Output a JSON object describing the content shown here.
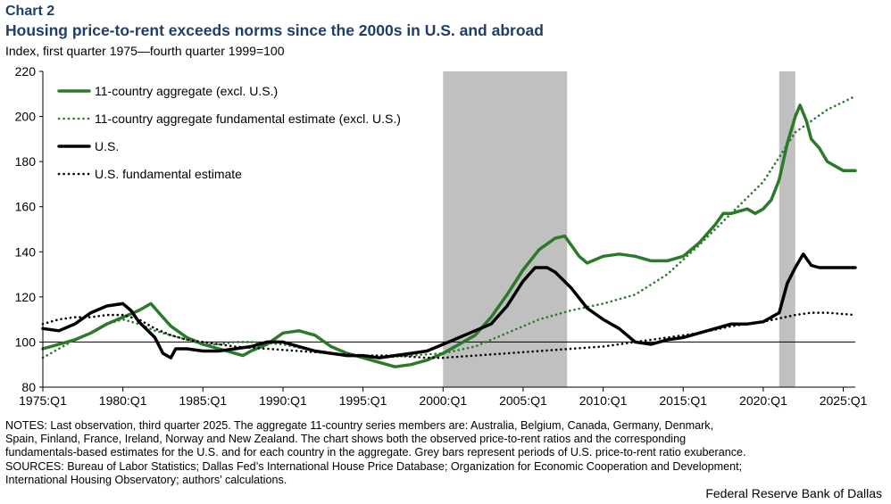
{
  "header": {
    "label": "Chart 2",
    "title": "Housing price-to-rent exceeds norms since the 2000s in U.S. and abroad",
    "subtitle": "Index, first quarter 1975—fourth quarter 1999=100"
  },
  "notes": {
    "lines": [
      "NOTES: Last observation, third quarter 2025. The aggregate 11-country series members are: Australia, Belgium, Canada, Germany, Denmark,",
      "Spain, Finland, France, Ireland, Norway and New Zealand. The chart shows both the observed price-to-rent ratios and the corresponding",
      "fundamentals-based estimates for the U.S. and for each country in the aggregate. Grey bars represent periods of U.S. price-to-rent ratio exuberance.",
      "SOURCES: Bureau of Labor Statistics; Dallas Fed’s International House Price Database; Organization for Economic Cooperation and Development;",
      "International Housing Observatory; authors’ calculations."
    ]
  },
  "footer": {
    "source": "Federal Reserve Bank of Dallas"
  },
  "colors": {
    "green": "#2a7a2a",
    "black": "#000000",
    "shade": "#c0c0c0",
    "title": "#1f3f6a"
  },
  "chart_data": {
    "type": "line",
    "title": "Housing price-to-rent exceeds norms since the 2000s in U.S. and abroad",
    "ylabel": "Index, first quarter 1975—fourth quarter 1999=100",
    "xlabel": "",
    "xlim": [
      1975.0,
      2025.75
    ],
    "ylim": [
      80,
      220
    ],
    "yticks": [
      80,
      100,
      120,
      140,
      160,
      180,
      200,
      220
    ],
    "xticks": [
      {
        "x": 1975,
        "label": "1975:Q1"
      },
      {
        "x": 1980,
        "label": "1980:Q1"
      },
      {
        "x": 1985,
        "label": "1985:Q1"
      },
      {
        "x": 1990,
        "label": "1990:Q1"
      },
      {
        "x": 1995,
        "label": "1995:Q1"
      },
      {
        "x": 2000,
        "label": "2000:Q1"
      },
      {
        "x": 2005,
        "label": "2005:Q1"
      },
      {
        "x": 2010,
        "label": "2010:Q1"
      },
      {
        "x": 2015,
        "label": "2015:Q1"
      },
      {
        "x": 2020,
        "label": "2020:Q1"
      },
      {
        "x": 2025,
        "label": "2025:Q1"
      }
    ],
    "reference_line": 100,
    "shaded_periods": [
      [
        2000.0,
        2007.75
      ],
      [
        2021.0,
        2022.0
      ]
    ],
    "legend_position": "top-left",
    "series": [
      {
        "name": "11-country aggregate (excl. U.S.)",
        "style": "solid",
        "color": "#2a7a2a",
        "points": [
          [
            1975,
            97
          ],
          [
            1976,
            99
          ],
          [
            1977,
            101
          ],
          [
            1978,
            104
          ],
          [
            1979,
            108
          ],
          [
            1980,
            111
          ],
          [
            1981,
            114
          ],
          [
            1981.75,
            117
          ],
          [
            1982.25,
            113
          ],
          [
            1983,
            107
          ],
          [
            1984,
            102
          ],
          [
            1985,
            99
          ],
          [
            1986,
            97
          ],
          [
            1987,
            95
          ],
          [
            1987.5,
            94
          ],
          [
            1988,
            96
          ],
          [
            1989,
            99
          ],
          [
            1990,
            104
          ],
          [
            1991,
            105
          ],
          [
            1992,
            103
          ],
          [
            1993,
            98
          ],
          [
            1994,
            95
          ],
          [
            1995,
            93
          ],
          [
            1996,
            91
          ],
          [
            1997,
            89
          ],
          [
            1998,
            90
          ],
          [
            1999,
            92
          ],
          [
            2000,
            95
          ],
          [
            2001,
            99
          ],
          [
            2002,
            103
          ],
          [
            2003,
            111
          ],
          [
            2004,
            121
          ],
          [
            2005,
            132
          ],
          [
            2006,
            141
          ],
          [
            2007,
            146
          ],
          [
            2007.6,
            147
          ],
          [
            2008.5,
            138
          ],
          [
            2009,
            135
          ],
          [
            2010,
            138
          ],
          [
            2011,
            139
          ],
          [
            2012,
            138
          ],
          [
            2013,
            136
          ],
          [
            2014,
            136
          ],
          [
            2015,
            138
          ],
          [
            2016,
            144
          ],
          [
            2017,
            152
          ],
          [
            2017.5,
            157
          ],
          [
            2018,
            157
          ],
          [
            2019,
            159
          ],
          [
            2019.5,
            157
          ],
          [
            2020,
            159
          ],
          [
            2020.5,
            163
          ],
          [
            2021,
            172
          ],
          [
            2021.5,
            188
          ],
          [
            2022,
            200
          ],
          [
            2022.3,
            205
          ],
          [
            2022.7,
            198
          ],
          [
            2023,
            190
          ],
          [
            2023.5,
            186
          ],
          [
            2024,
            180
          ],
          [
            2025,
            176
          ],
          [
            2025.75,
            176
          ]
        ]
      },
      {
        "name": "11-country aggregate fundamental estimate (excl. U.S.)",
        "style": "dotted",
        "color": "#2a7a2a",
        "points": [
          [
            1975,
            93
          ],
          [
            1976,
            97
          ],
          [
            1977,
            101
          ],
          [
            1978,
            104
          ],
          [
            1979,
            108
          ],
          [
            1980,
            110
          ],
          [
            1981,
            108
          ],
          [
            1982,
            105
          ],
          [
            1983,
            103
          ],
          [
            1984,
            101
          ],
          [
            1985,
            99
          ],
          [
            1986,
            99
          ],
          [
            1987,
            100
          ],
          [
            1988,
            100
          ],
          [
            1990,
            99
          ],
          [
            1992,
            96
          ],
          [
            1994,
            94
          ],
          [
            1996,
            93
          ],
          [
            1998,
            94
          ],
          [
            2000,
            95
          ],
          [
            2002,
            98
          ],
          [
            2004,
            104
          ],
          [
            2006,
            110
          ],
          [
            2008,
            114
          ],
          [
            2010,
            117
          ],
          [
            2012,
            121
          ],
          [
            2014,
            130
          ],
          [
            2016,
            143
          ],
          [
            2018,
            157
          ],
          [
            2020,
            171
          ],
          [
            2022,
            193
          ],
          [
            2024,
            203
          ],
          [
            2025.75,
            209
          ]
        ]
      },
      {
        "name": "U.S.",
        "style": "solid",
        "color": "#000000",
        "points": [
          [
            1975,
            106
          ],
          [
            1976,
            105
          ],
          [
            1977,
            108
          ],
          [
            1978,
            113
          ],
          [
            1979,
            116
          ],
          [
            1980,
            117
          ],
          [
            1980.5,
            114
          ],
          [
            1981,
            109
          ],
          [
            1982,
            102
          ],
          [
            1982.5,
            95
          ],
          [
            1983,
            93
          ],
          [
            1983.3,
            97
          ],
          [
            1984,
            97
          ],
          [
            1985,
            96
          ],
          [
            1986,
            96
          ],
          [
            1987,
            97
          ],
          [
            1988,
            98
          ],
          [
            1989,
            100
          ],
          [
            1990,
            100
          ],
          [
            1991,
            98
          ],
          [
            1992,
            96
          ],
          [
            1993,
            95
          ],
          [
            1994,
            94
          ],
          [
            1995,
            94
          ],
          [
            1996,
            93
          ],
          [
            1997,
            94
          ],
          [
            1998,
            95
          ],
          [
            1999,
            96
          ],
          [
            2000,
            99
          ],
          [
            2001,
            102
          ],
          [
            2002,
            105
          ],
          [
            2003,
            108
          ],
          [
            2004,
            116
          ],
          [
            2005,
            127
          ],
          [
            2005.75,
            133
          ],
          [
            2006.5,
            133
          ],
          [
            2007,
            131
          ],
          [
            2008,
            124
          ],
          [
            2009,
            115
          ],
          [
            2010,
            110
          ],
          [
            2011,
            106
          ],
          [
            2012,
            100
          ],
          [
            2013,
            99
          ],
          [
            2014,
            101
          ],
          [
            2015,
            102
          ],
          [
            2016,
            104
          ],
          [
            2017,
            106
          ],
          [
            2018,
            108
          ],
          [
            2019,
            108
          ],
          [
            2020,
            109
          ],
          [
            2021,
            113
          ],
          [
            2021.5,
            126
          ],
          [
            2022,
            133
          ],
          [
            2022.5,
            139
          ],
          [
            2023,
            134
          ],
          [
            2023.5,
            133
          ],
          [
            2024,
            133
          ],
          [
            2025,
            133
          ],
          [
            2025.75,
            133
          ]
        ]
      },
      {
        "name": "U.S. fundamental estimate",
        "style": "dotted",
        "color": "#000000",
        "points": [
          [
            1975,
            108
          ],
          [
            1976,
            110
          ],
          [
            1977,
            111
          ],
          [
            1978,
            111
          ],
          [
            1979,
            112
          ],
          [
            1980,
            112
          ],
          [
            1981,
            110
          ],
          [
            1982,
            106
          ],
          [
            1983,
            103
          ],
          [
            1984,
            101
          ],
          [
            1985,
            100
          ],
          [
            1986,
            99
          ],
          [
            1987,
            98
          ],
          [
            1989,
            97
          ],
          [
            1991,
            96
          ],
          [
            1993,
            95
          ],
          [
            1995,
            94
          ],
          [
            1997,
            94
          ],
          [
            1999,
            93
          ],
          [
            2000,
            93
          ],
          [
            2002,
            94
          ],
          [
            2004,
            95
          ],
          [
            2006,
            96
          ],
          [
            2008,
            97
          ],
          [
            2010,
            98
          ],
          [
            2012,
            100
          ],
          [
            2014,
            102
          ],
          [
            2016,
            104
          ],
          [
            2018,
            107
          ],
          [
            2020,
            109
          ],
          [
            2022,
            112
          ],
          [
            2023,
            113
          ],
          [
            2024,
            113
          ],
          [
            2025.75,
            112
          ]
        ]
      }
    ]
  }
}
